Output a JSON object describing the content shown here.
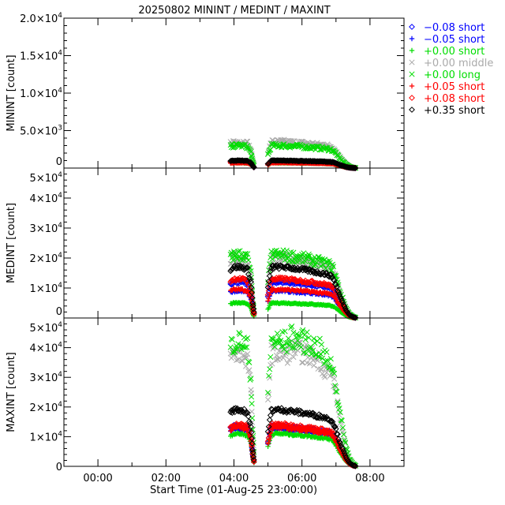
{
  "chart_data": {
    "type": "scatter",
    "title": "20250802 MININT / MEDINT / MAXINT",
    "xlabel": "Start Time (01-Aug-25 23:00:00)",
    "x_unit": "hours since 01-Aug-25 23:00 offset (00:00 = 0)",
    "xlim": [
      -1,
      9
    ],
    "x_ticks": [
      {
        "v": 0,
        "label": "00:00"
      },
      {
        "v": 2,
        "label": "02:00"
      },
      {
        "v": 4,
        "label": "04:00"
      },
      {
        "v": 6,
        "label": "06:00"
      },
      {
        "v": 8,
        "label": "08:00"
      }
    ],
    "legend_position": "right",
    "series": [
      {
        "name": "-0.08 short",
        "label": "−0.08 short",
        "color": "#0000ff",
        "marker": "diamond"
      },
      {
        "name": "-0.05 short",
        "label": "−0.05 short",
        "color": "#0000ff",
        "marker": "plus"
      },
      {
        "name": "+0.00 short",
        "label": "+0.00 short",
        "color": "#00dd00",
        "marker": "plus"
      },
      {
        "name": "+0.00 middle",
        "label": "+0.00 middle",
        "color": "#aaaaaa",
        "marker": "x"
      },
      {
        "name": "+0.00 long",
        "label": "+0.00 long",
        "color": "#00dd00",
        "marker": "x"
      },
      {
        "name": "+0.05 short",
        "label": "+0.05 short",
        "color": "#ff0000",
        "marker": "plus"
      },
      {
        "name": "+0.08 short",
        "label": "+0.08 short",
        "color": "#ff0000",
        "marker": "diamond"
      },
      {
        "name": "+0.35 short",
        "label": "+0.35 short",
        "color": "#000000",
        "marker": "diamond"
      }
    ],
    "times": [
      3.9,
      4.0,
      4.1,
      4.2,
      4.3,
      4.4,
      4.5,
      4.55,
      4.6,
      5.0,
      5.1,
      5.2,
      5.3,
      5.4,
      5.5,
      5.6,
      5.7,
      5.8,
      5.9,
      6.0,
      6.1,
      6.2,
      6.3,
      6.4,
      6.5,
      6.6,
      6.7,
      6.8,
      6.9,
      7.0,
      7.1,
      7.2,
      7.3,
      7.4,
      7.5,
      7.6
    ],
    "shape": [
      0.95,
      1,
      1,
      1,
      0.98,
      0.95,
      0.7,
      0.3,
      0.05,
      0.6,
      1,
      1,
      1,
      1,
      1,
      0.98,
      0.98,
      0.97,
      0.96,
      0.95,
      0.94,
      0.93,
      0.92,
      0.9,
      0.89,
      0.88,
      0.86,
      0.84,
      0.8,
      0.65,
      0.45,
      0.3,
      0.15,
      0.06,
      0.02,
      0
    ],
    "panels": [
      {
        "name": "MININT",
        "ylabel": "MININT [count]",
        "ylim": [
          0,
          20000
        ],
        "yticks": [
          {
            "v": 0,
            "m": "0",
            "e": ""
          },
          {
            "v": 5000,
            "m": "5.0×10",
            "e": "3"
          },
          {
            "v": 10000,
            "m": "1.0×10",
            "e": "4"
          },
          {
            "v": 15000,
            "m": "1.5×10",
            "e": "4"
          },
          {
            "v": 20000,
            "m": "2.0×10",
            "e": "4"
          }
        ],
        "levels": [
          900,
          800,
          700,
          3500,
          3000,
          700,
          900,
          1000
        ]
      },
      {
        "name": "MEDINT",
        "ylabel": "MEDINT [count]",
        "ylim": [
          0,
          50000
        ],
        "yticks": [
          {
            "v": 0,
            "m": "0",
            "e": ""
          },
          {
            "v": 10000,
            "m": "1×10",
            "e": "4"
          },
          {
            "v": 20000,
            "m": "2×10",
            "e": "4"
          },
          {
            "v": 30000,
            "m": "3×10",
            "e": "4"
          },
          {
            "v": 40000,
            "m": "4×10",
            "e": "4"
          },
          {
            "v": 50000,
            "m": "5×10",
            "e": "4"
          }
        ],
        "levels": [
          12000,
          9000,
          5000,
          20000,
          21000,
          9500,
          13000,
          17000
        ]
      },
      {
        "name": "MAXINT",
        "ylabel": "MAXINT [count]",
        "ylim": [
          0,
          50000
        ],
        "yticks": [
          {
            "v": 0,
            "m": "0",
            "e": ""
          },
          {
            "v": 10000,
            "m": "1×10",
            "e": "4"
          },
          {
            "v": 20000,
            "m": "2×10",
            "e": "4"
          },
          {
            "v": 30000,
            "m": "3×10",
            "e": "4"
          },
          {
            "v": 40000,
            "m": "4×10",
            "e": "4"
          },
          {
            "v": 50000,
            "m": "5×10",
            "e": "4"
          }
        ],
        "levels": [
          13500,
          12500,
          11000,
          38000,
          42000,
          13000,
          14000,
          19000
        ]
      }
    ]
  }
}
